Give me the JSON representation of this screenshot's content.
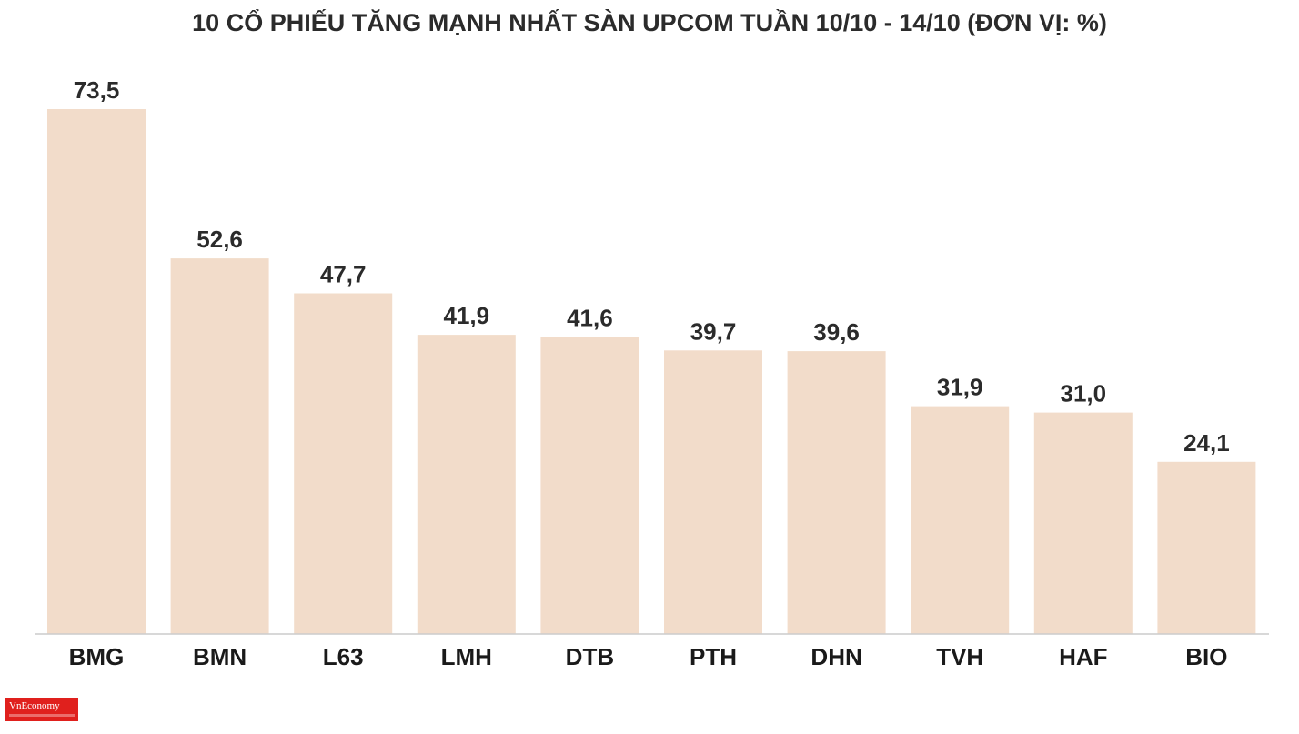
{
  "chart_data": {
    "type": "bar",
    "title": "10 CỔ PHIẾU TĂNG MẠNH NHẤT SÀN UPCOM TUẦN 10/10 - 14/10 (ĐƠN VỊ: %)",
    "categories": [
      "BMG",
      "BMN",
      "L63",
      "LMH",
      "DTB",
      "PTH",
      "DHN",
      "TVH",
      "HAF",
      "BIO"
    ],
    "values": [
      73.5,
      52.6,
      47.7,
      41.9,
      41.6,
      39.7,
      39.6,
      31.9,
      31.0,
      24.1
    ],
    "value_labels": [
      "73,5",
      "52,6",
      "47,7",
      "41,9",
      "41,6",
      "39,7",
      "39,6",
      "31,9",
      "31,0",
      "24,1"
    ],
    "ylim": [
      0,
      73.5
    ],
    "grid": false,
    "legend": "none",
    "colors": {
      "bar": "#f2dcca",
      "axis": "#cccccc",
      "text": "#2b2b2b"
    }
  },
  "brand": {
    "logo_text": "VnEconomy"
  }
}
